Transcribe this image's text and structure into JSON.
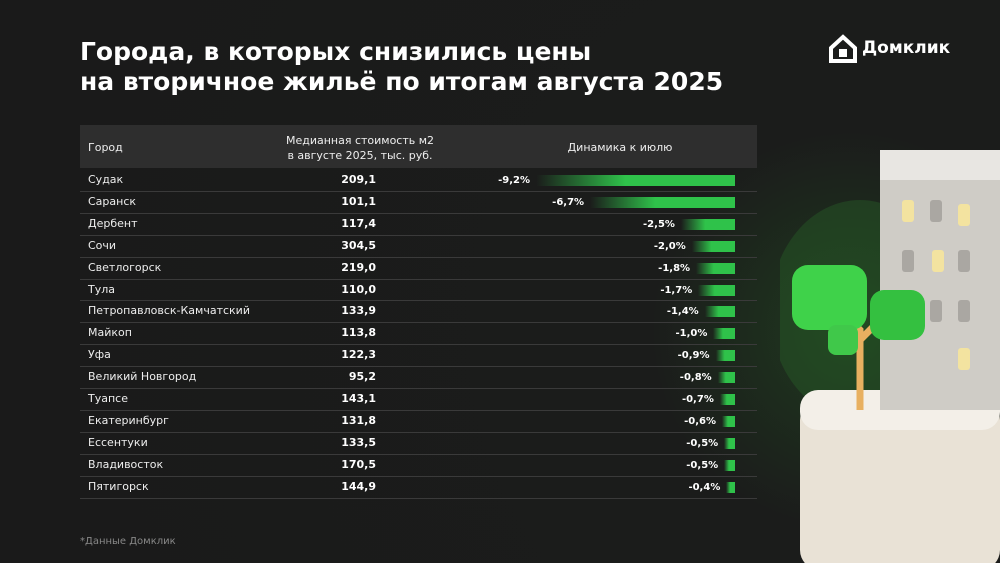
{
  "title": [
    "Города, в которых снизились цены",
    "на вторичное жильё по итогам августа 2025"
  ],
  "brand": "Домклик",
  "footnote": "*Данные Домклик",
  "chart_data": {
    "type": "bar",
    "orientation": "horizontal",
    "color": "#2fc24a",
    "columns": [
      "Город",
      "Медианная стоимость м2\nв августе 2025, тыс. руб.",
      "Динамика к июлю"
    ],
    "categories": [
      "Судак",
      "Саранск",
      "Дербент",
      "Сочи",
      "Светлогорск",
      "Тула",
      "Петропавловск-Камчатский",
      "Майкоп",
      "Уфа",
      "Великий Новгород",
      "Туапсе",
      "Екатеринбург",
      "Ессентуки",
      "Владивосток",
      "Пятигорск"
    ],
    "prices": [
      "209,1",
      "101,1",
      "117,4",
      "304,5",
      "219,0",
      "110,0",
      "133,9",
      "113,8",
      "122,3",
      "95,2",
      "143,1",
      "131,8",
      "133,5",
      "170,5",
      "144,9"
    ],
    "values": [
      -9.2,
      -6.7,
      -2.5,
      -2.0,
      -1.8,
      -1.7,
      -1.4,
      -1.0,
      -0.9,
      -0.8,
      -0.7,
      -0.6,
      -0.5,
      -0.5,
      -0.4
    ],
    "value_labels": [
      "-9,2%",
      "-6,7%",
      "-2,5%",
      "-2,0%",
      "-1,8%",
      "-1,7%",
      "-1,4%",
      "-1,0%",
      "-0,9%",
      "-0,8%",
      "-0,7%",
      "-0,6%",
      "-0,5%",
      "-0,5%",
      "-0,4%"
    ]
  }
}
